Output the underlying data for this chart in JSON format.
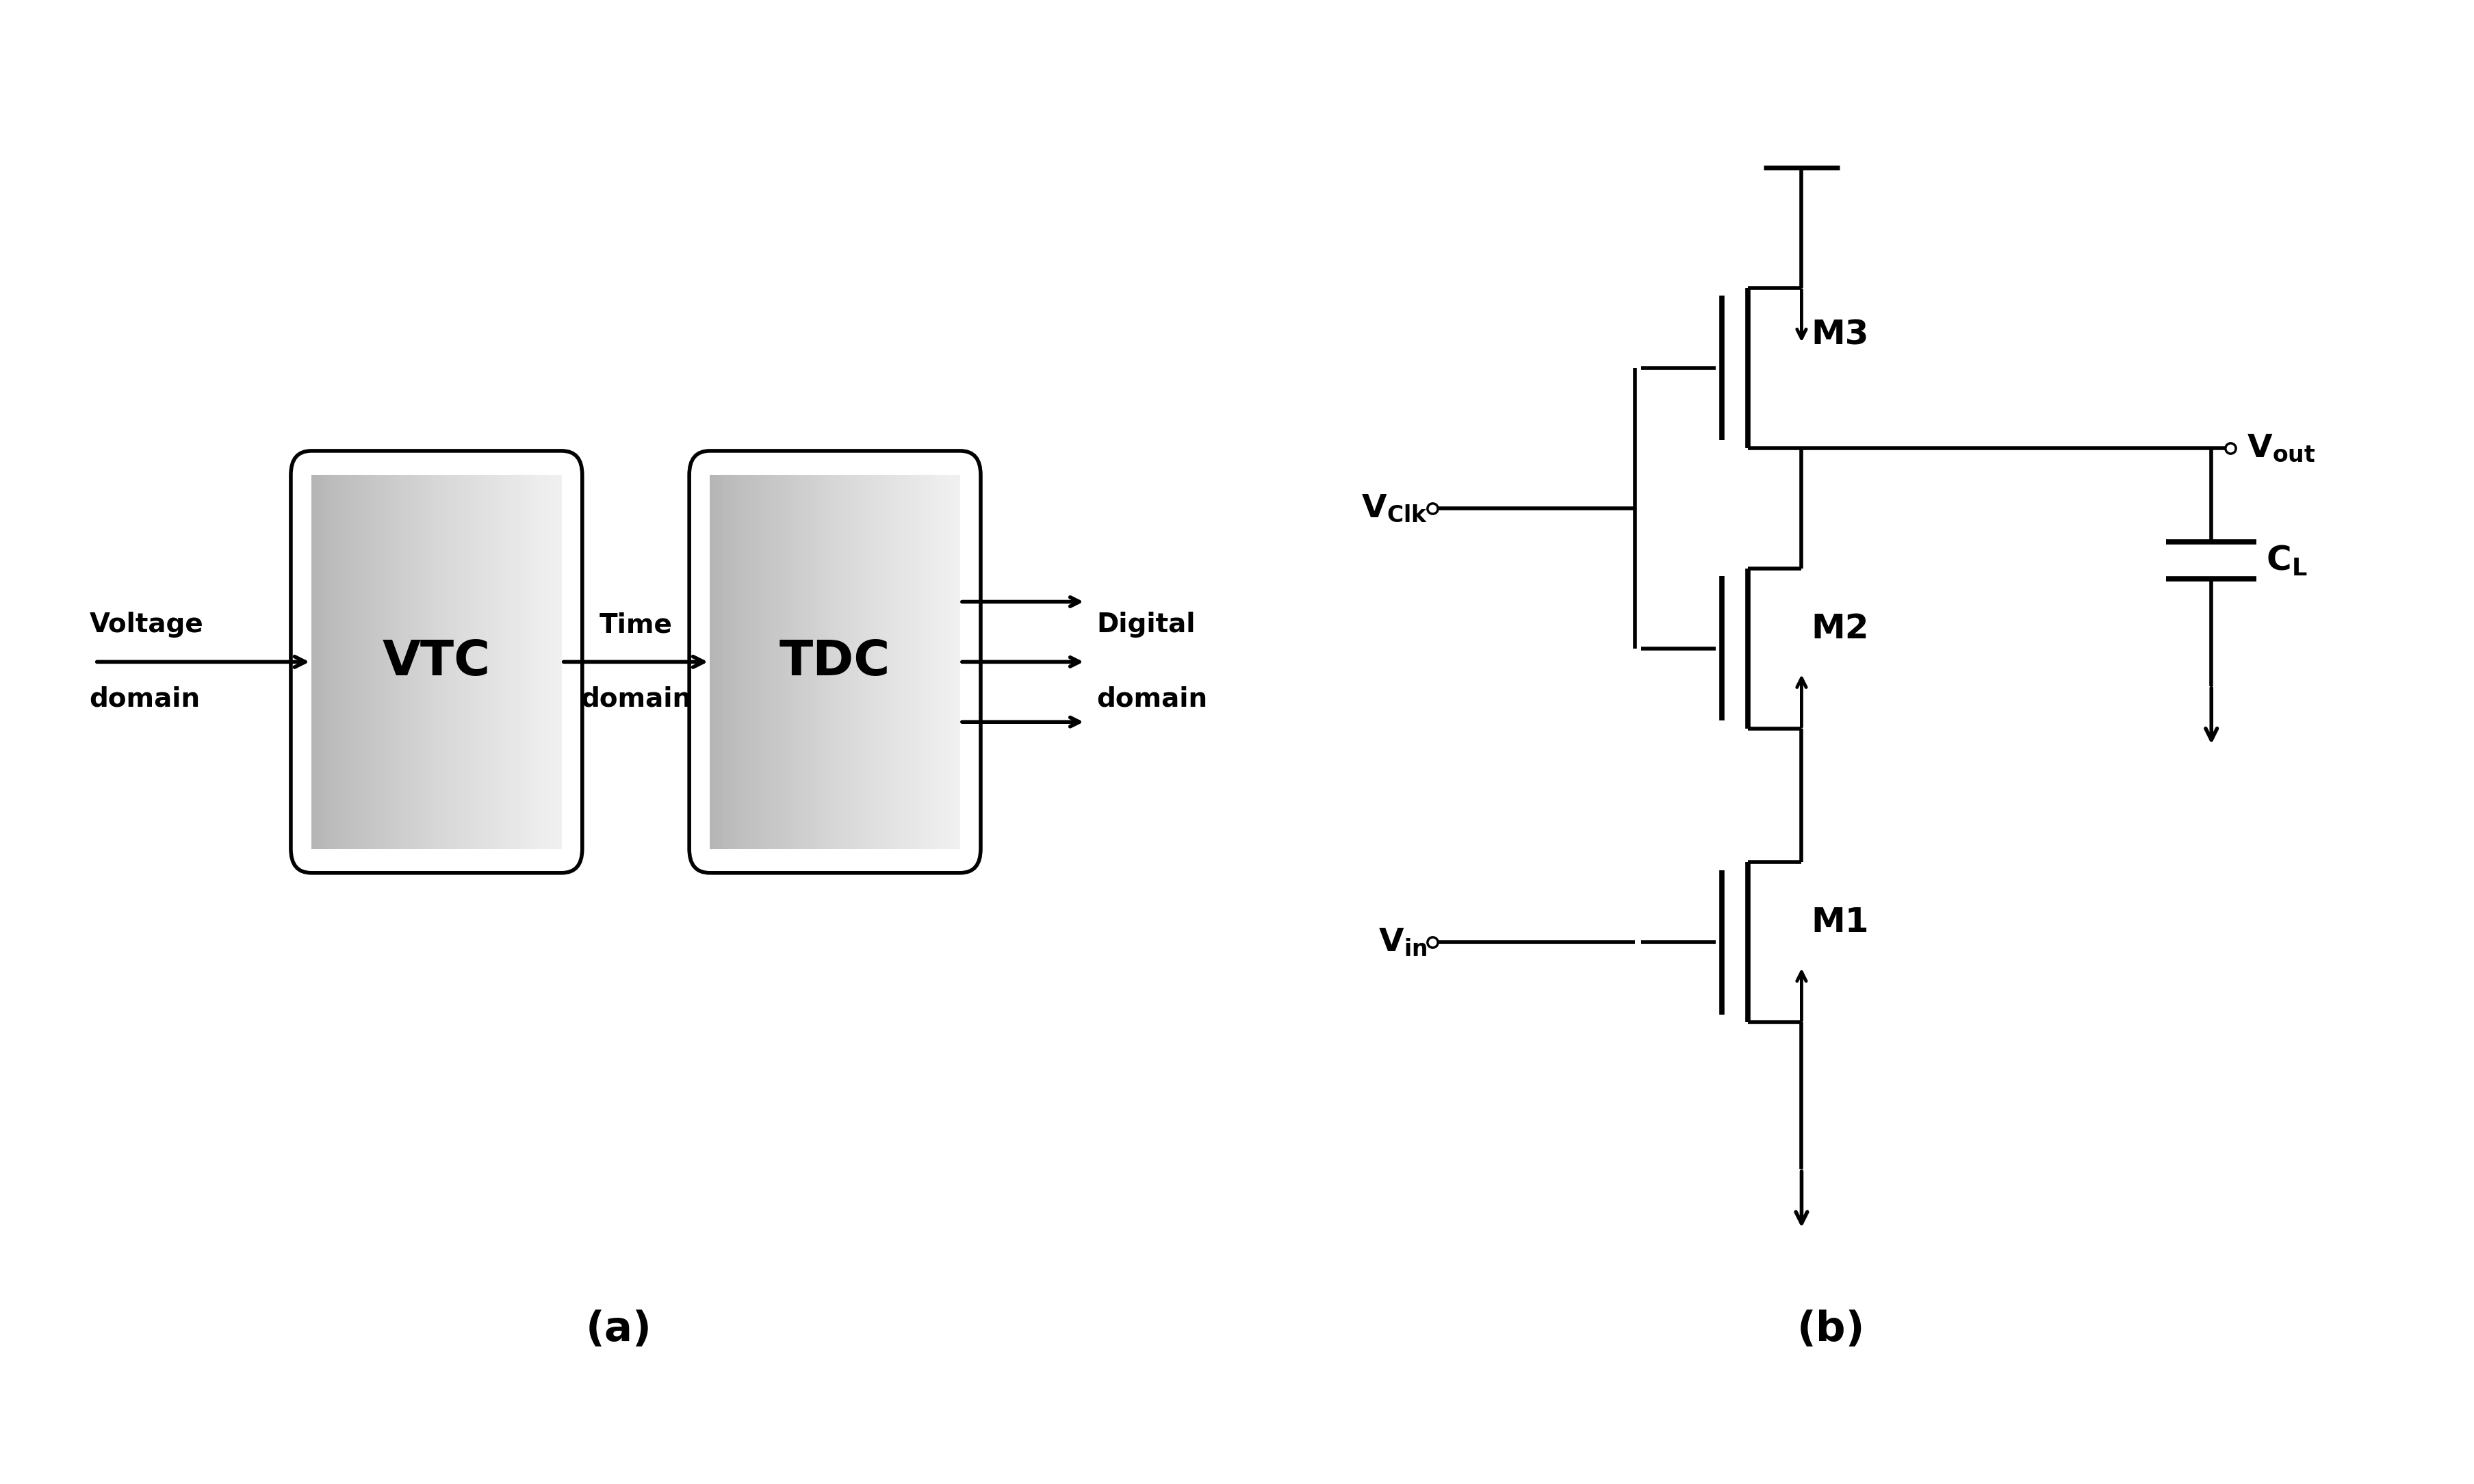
{
  "fig_width": 36.16,
  "fig_height": 21.69,
  "bg_color": "#ffffff",
  "line_color": "#000000",
  "label_a": "(a)",
  "label_b": "(b)",
  "vtc_label": "VTC",
  "tdc_label": "TDC",
  "voltage_domain_line1": "Voltage",
  "voltage_domain_line2": "domain",
  "time_domain_line1": "Time",
  "time_domain_line2": "domain",
  "digital_domain_line1": "Digital",
  "digital_domain_line2": "domain",
  "m1_label": "M1",
  "m2_label": "M2",
  "m3_label": "M3",
  "vclk_main": "V",
  "vclk_sub": "Clk",
  "vout_main": "V",
  "vout_sub": "out",
  "vin_main": "V",
  "vin_sub": "in",
  "cl_main": "C",
  "cl_sub": "L"
}
